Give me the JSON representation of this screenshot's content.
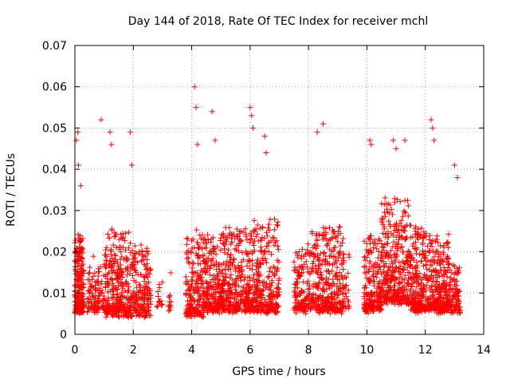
{
  "chart_data": {
    "type": "scatter",
    "title": "Day 144 of 2018, Rate Of TEC Index for receiver mchl",
    "xlabel": "GPS time / hours",
    "ylabel": "ROTI / TECUs",
    "xlim": [
      0,
      14
    ],
    "ylim": [
      0,
      0.07
    ],
    "x_ticks": [
      0,
      2,
      4,
      6,
      8,
      10,
      12,
      14
    ],
    "x_tick_labels": [
      "0",
      "2",
      "4",
      "6",
      "8",
      "10",
      "12",
      "14"
    ],
    "y_ticks": [
      0,
      0.01,
      0.02,
      0.03,
      0.04,
      0.05,
      0.06,
      0.07
    ],
    "y_tick_labels": [
      "0",
      "0.01",
      "0.02",
      "0.03",
      "0.04",
      "0.05",
      "0.06",
      "0.07"
    ],
    "grid": true,
    "marker": "+",
    "color": "#ff0000",
    "series": [
      {
        "name": "ROTI",
        "clusters": [
          {
            "t0": 0.0,
            "t1": 0.3,
            "n": 220,
            "base": 0.006,
            "spread": 0.018
          },
          {
            "t0": 0.4,
            "t1": 1.0,
            "n": 110,
            "base": 0.006,
            "spread": 0.012
          },
          {
            "t0": 1.0,
            "t1": 1.9,
            "n": 300,
            "base": 0.005,
            "spread": 0.02
          },
          {
            "t0": 1.9,
            "t1": 2.6,
            "n": 200,
            "base": 0.005,
            "spread": 0.016
          },
          {
            "t0": 2.8,
            "t1": 3.0,
            "n": 15,
            "base": 0.007,
            "spread": 0.007
          },
          {
            "t0": 3.2,
            "t1": 3.3,
            "n": 12,
            "base": 0.006,
            "spread": 0.009
          },
          {
            "t0": 3.8,
            "t1": 4.4,
            "n": 200,
            "base": 0.005,
            "spread": 0.02
          },
          {
            "t0": 4.4,
            "t1": 5.0,
            "n": 220,
            "base": 0.006,
            "spread": 0.018
          },
          {
            "t0": 5.0,
            "t1": 6.0,
            "n": 320,
            "base": 0.006,
            "spread": 0.02
          },
          {
            "t0": 6.0,
            "t1": 7.0,
            "n": 300,
            "base": 0.006,
            "spread": 0.022
          },
          {
            "t0": 7.5,
            "t1": 8.1,
            "n": 140,
            "base": 0.006,
            "spread": 0.016
          },
          {
            "t0": 8.1,
            "t1": 9.2,
            "n": 320,
            "base": 0.006,
            "spread": 0.02
          },
          {
            "t0": 9.2,
            "t1": 9.4,
            "n": 25,
            "base": 0.007,
            "spread": 0.012
          },
          {
            "t0": 9.9,
            "t1": 10.5,
            "n": 200,
            "base": 0.006,
            "spread": 0.018
          },
          {
            "t0": 10.5,
            "t1": 11.5,
            "n": 360,
            "base": 0.008,
            "spread": 0.025
          },
          {
            "t0": 11.5,
            "t1": 12.2,
            "n": 260,
            "base": 0.006,
            "spread": 0.02
          },
          {
            "t0": 12.2,
            "t1": 12.8,
            "n": 220,
            "base": 0.006,
            "spread": 0.018
          },
          {
            "t0": 12.8,
            "t1": 13.2,
            "n": 100,
            "base": 0.006,
            "spread": 0.012
          }
        ],
        "spikes": [
          [
            0.05,
            0.047
          ],
          [
            0.1,
            0.049
          ],
          [
            0.12,
            0.041
          ],
          [
            0.2,
            0.036
          ],
          [
            0.9,
            0.052
          ],
          [
            1.2,
            0.049
          ],
          [
            1.25,
            0.046
          ],
          [
            1.9,
            0.049
          ],
          [
            1.95,
            0.041
          ],
          [
            4.1,
            0.06
          ],
          [
            4.15,
            0.055
          ],
          [
            4.2,
            0.046
          ],
          [
            4.7,
            0.054
          ],
          [
            4.8,
            0.047
          ],
          [
            6.0,
            0.055
          ],
          [
            6.05,
            0.053
          ],
          [
            6.1,
            0.05
          ],
          [
            6.5,
            0.048
          ],
          [
            6.55,
            0.044
          ],
          [
            8.3,
            0.049
          ],
          [
            8.5,
            0.051
          ],
          [
            10.1,
            0.047
          ],
          [
            10.15,
            0.046
          ],
          [
            10.9,
            0.047
          ],
          [
            11.0,
            0.045
          ],
          [
            11.3,
            0.047
          ],
          [
            12.2,
            0.052
          ],
          [
            12.25,
            0.05
          ],
          [
            12.3,
            0.047
          ],
          [
            13.0,
            0.041
          ],
          [
            13.1,
            0.038
          ]
        ]
      }
    ]
  }
}
